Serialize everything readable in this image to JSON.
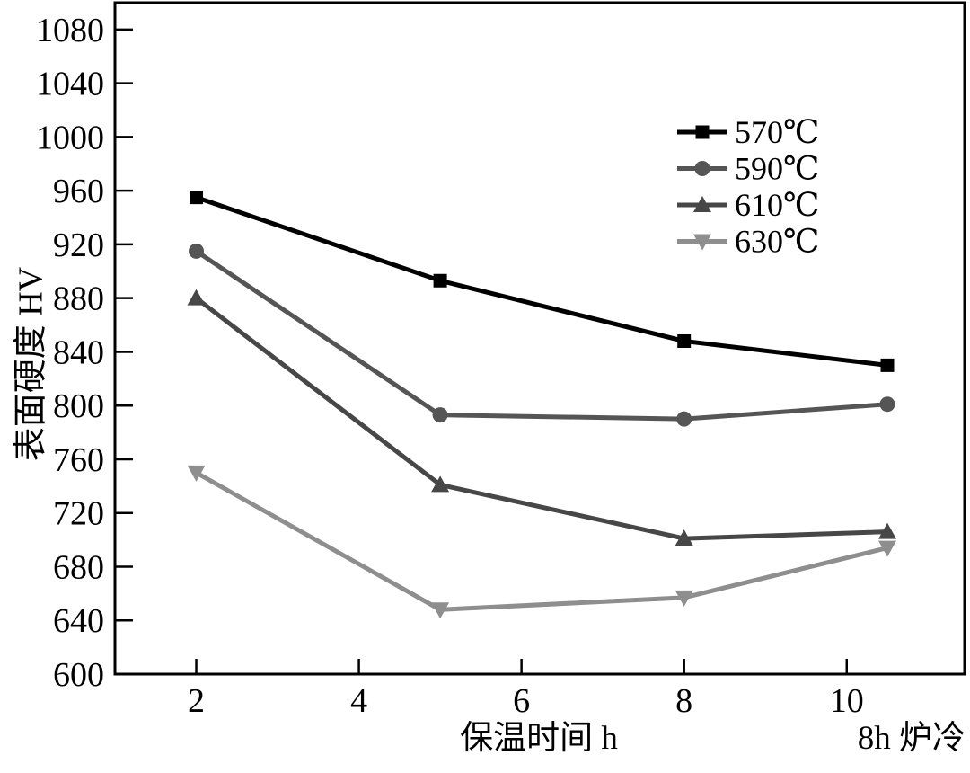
{
  "chart_data": {
    "type": "line",
    "title": "",
    "xlabel": "保温时间 h",
    "ylabel": "表面硬度 HV",
    "annotation": "8h 炉冷",
    "x": [
      2,
      5,
      8,
      10.5
    ],
    "series": [
      {
        "name": "570℃",
        "marker": "square",
        "color": "#000000",
        "values": [
          955,
          893,
          848,
          830
        ]
      },
      {
        "name": "590℃",
        "marker": "circle",
        "color": "#555555",
        "values": [
          915,
          793,
          790,
          801
        ]
      },
      {
        "name": "610℃",
        "marker": "triangle-up",
        "color": "#474747",
        "values": [
          880,
          741,
          701,
          706
        ]
      },
      {
        "name": "630℃",
        "marker": "triangle-down",
        "color": "#8e8e8e",
        "values": [
          750,
          648,
          657,
          694
        ]
      }
    ],
    "xticks": [
      2,
      4,
      6,
      8,
      10
    ],
    "yticks": [
      600,
      640,
      680,
      720,
      760,
      800,
      840,
      880,
      920,
      960,
      1000,
      1040,
      1080
    ],
    "xlim": [
      1,
      11.45
    ],
    "ylim": [
      600,
      1100
    ],
    "grid": false,
    "legend_position": "upper-right-inside",
    "axis_color": "#000000",
    "background_color": "#ffffff"
  }
}
